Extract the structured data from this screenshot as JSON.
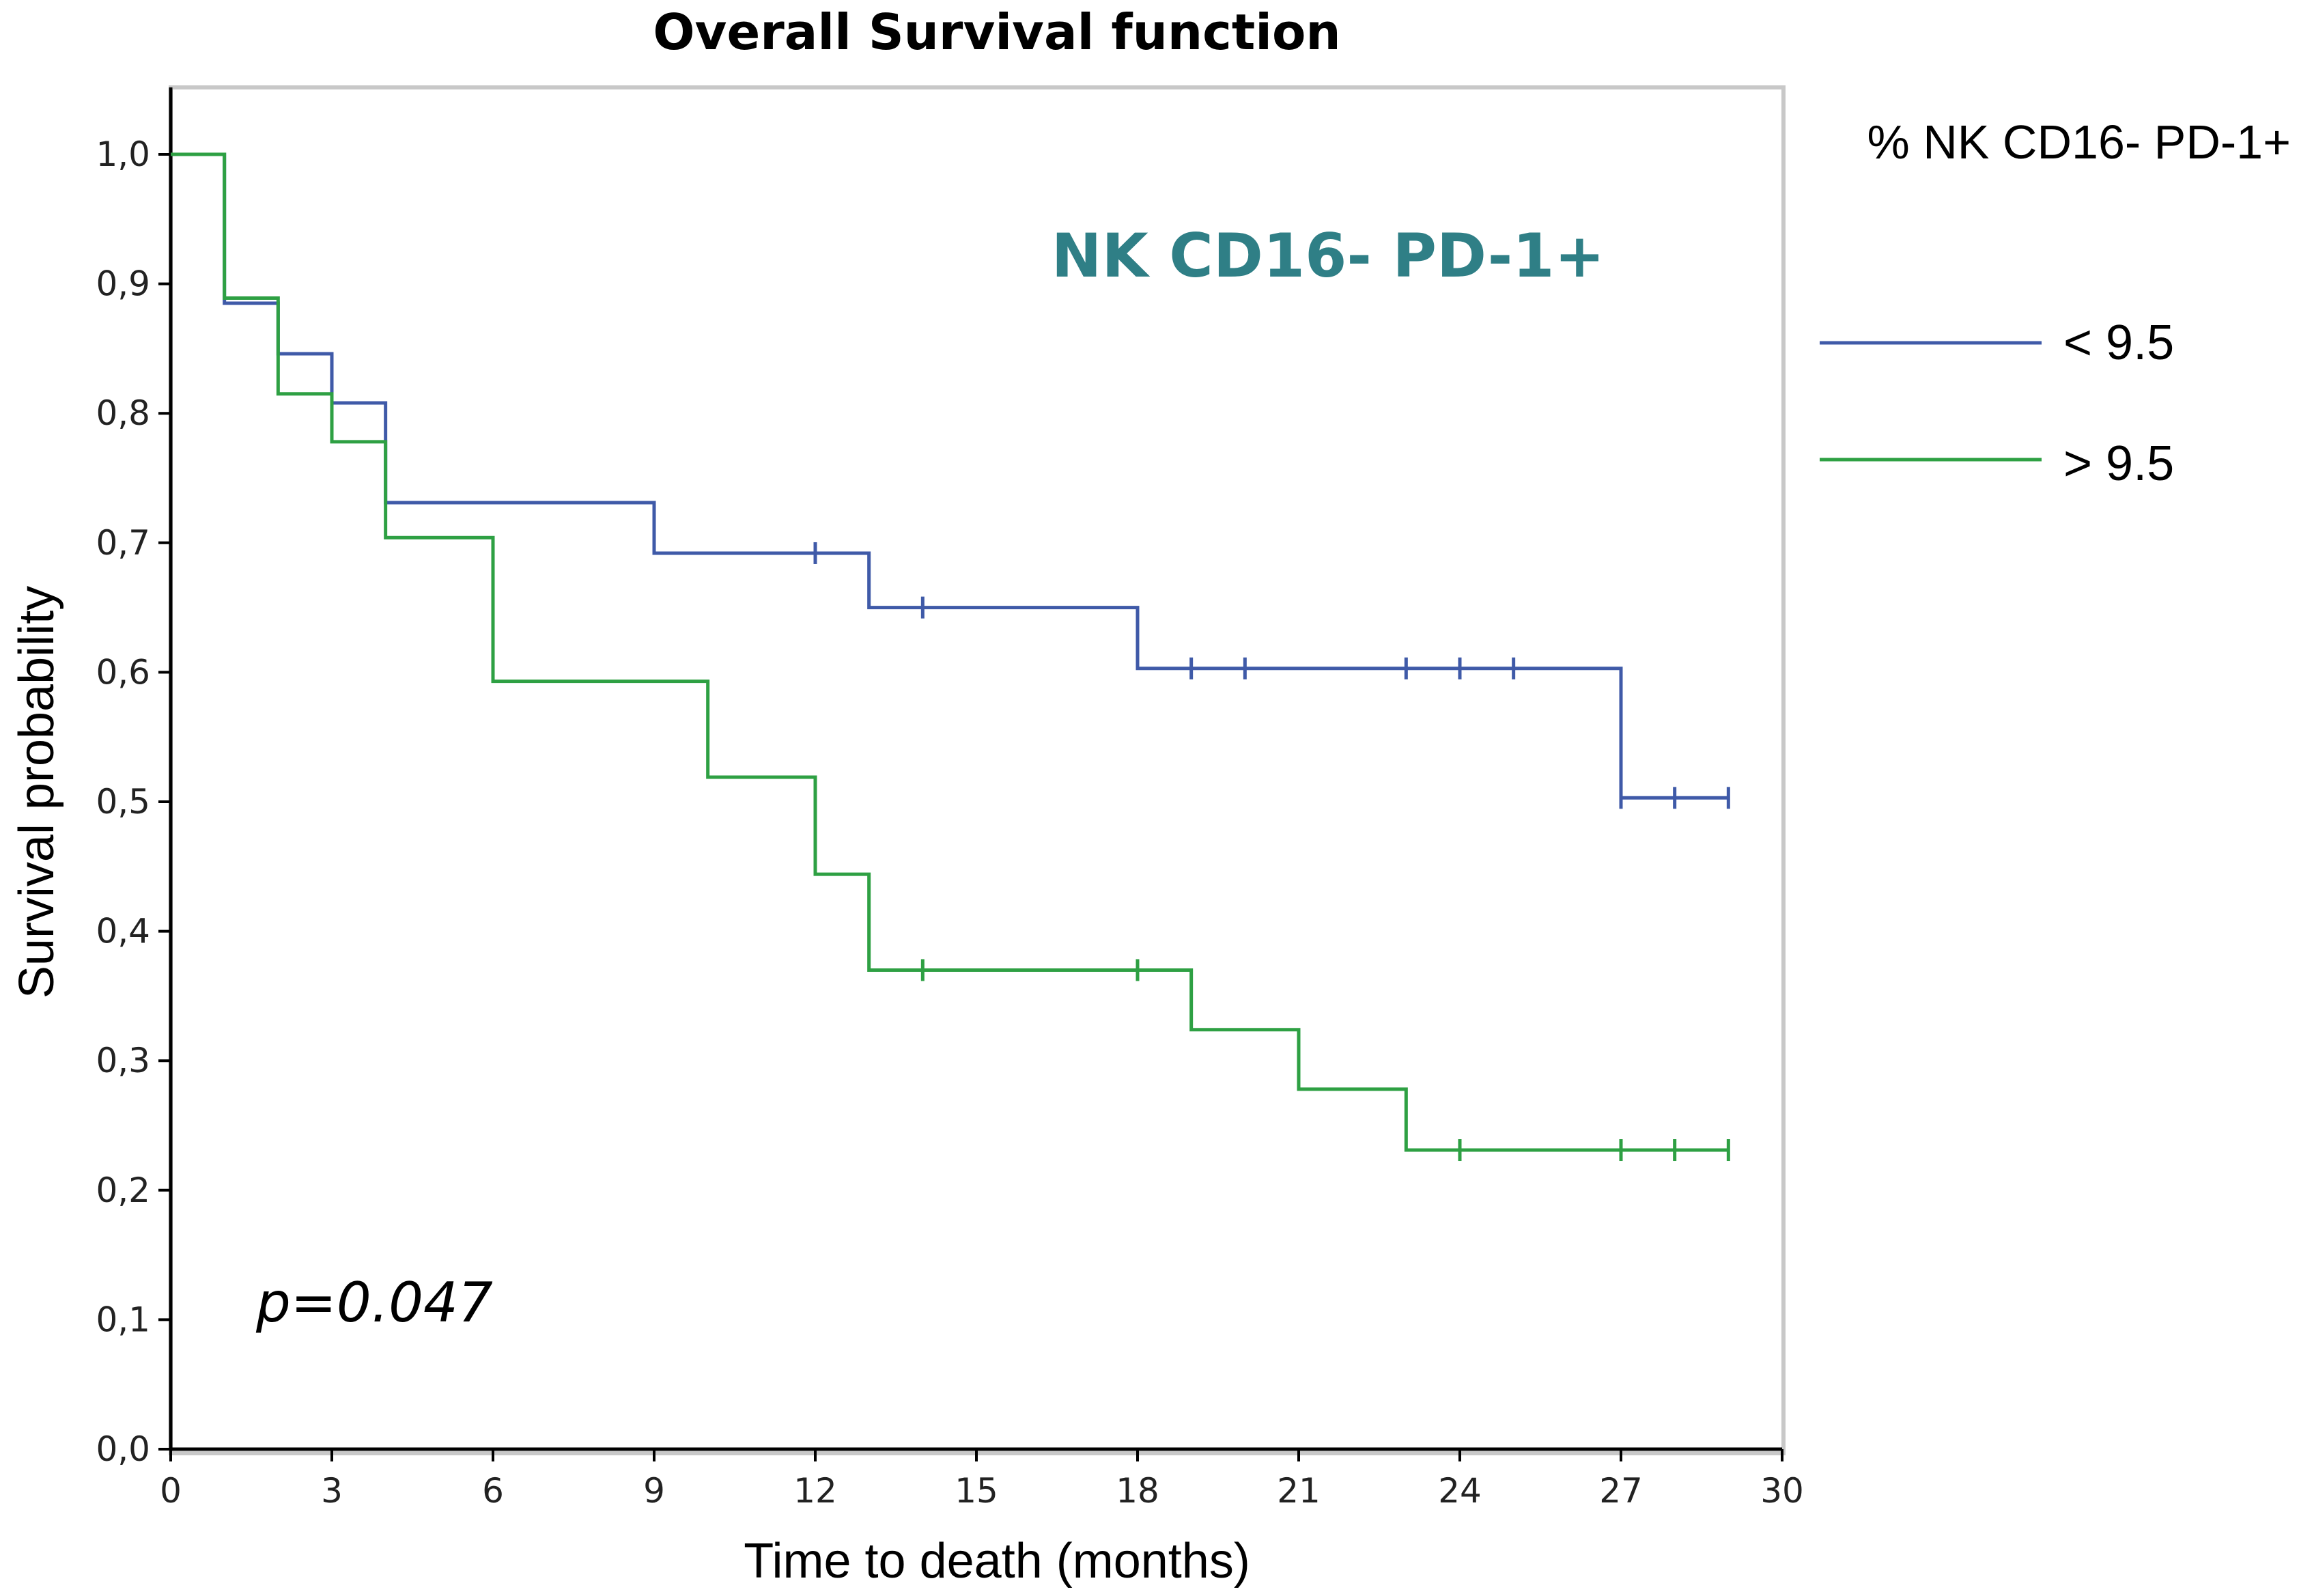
{
  "chart_data": {
    "type": "line",
    "subtype": "kaplan-meier",
    "title": "Overall Survival function",
    "xlabel": "Time to death (months)",
    "ylabel": "Survival probability",
    "xlim": [
      0,
      30
    ],
    "ylim": [
      0,
      1
    ],
    "xticks": [
      0,
      3,
      6,
      9,
      12,
      15,
      18,
      21,
      24,
      27,
      30
    ],
    "xtick_labels": [
      "0",
      "3",
      "6",
      "9",
      "12",
      "15",
      "18",
      "21",
      "24",
      "27",
      "30"
    ],
    "yticks": [
      0,
      0.1,
      0.2,
      0.3,
      0.4,
      0.5,
      0.6,
      0.7,
      0.8,
      0.9,
      1.0
    ],
    "ytick_labels": [
      "0,0",
      "0,1",
      "0,2",
      "0,3",
      "0,4",
      "0,5",
      "0,6",
      "0,7",
      "0,8",
      "0,9",
      "1,0"
    ],
    "grid": false,
    "legend": {
      "title": "% NK CD16- PD-1+",
      "placement": "right",
      "entries": [
        "< 9.5",
        "> 9.5"
      ]
    },
    "annotation": "NK CD16- PD-1+",
    "annotation_color": "#2f7f86",
    "p_value": "p=0.047",
    "series": [
      {
        "name": "< 9.5",
        "color": "#3f5aa8",
        "steps": [
          [
            0,
            1.0
          ],
          [
            1,
            0.885
          ],
          [
            2,
            0.846
          ],
          [
            3,
            0.808
          ],
          [
            4,
            0.731
          ],
          [
            9,
            0.692
          ],
          [
            13,
            0.65
          ],
          [
            18,
            0.603
          ],
          [
            27,
            0.503
          ]
        ],
        "end_time": 29,
        "censored": [
          [
            12,
            0.692
          ],
          [
            14,
            0.65
          ],
          [
            19,
            0.603
          ],
          [
            20,
            0.603
          ],
          [
            23,
            0.603
          ],
          [
            24,
            0.603
          ],
          [
            25,
            0.603
          ],
          [
            27,
            0.503
          ],
          [
            28,
            0.503
          ],
          [
            29,
            0.503
          ]
        ]
      },
      {
        "name": "> 9.5",
        "color": "#2ea043",
        "steps": [
          [
            0,
            1.0
          ],
          [
            1,
            0.889
          ],
          [
            2,
            0.815
          ],
          [
            3,
            0.778
          ],
          [
            4,
            0.704
          ],
          [
            6,
            0.593
          ],
          [
            10,
            0.519
          ],
          [
            12,
            0.444
          ],
          [
            13,
            0.37
          ],
          [
            19,
            0.324
          ],
          [
            21,
            0.278
          ],
          [
            23,
            0.231
          ]
        ],
        "end_time": 29,
        "censored": [
          [
            14,
            0.37
          ],
          [
            18,
            0.37
          ],
          [
            24,
            0.231
          ],
          [
            27,
            0.231
          ],
          [
            28,
            0.231
          ],
          [
            29,
            0.231
          ]
        ]
      }
    ]
  }
}
